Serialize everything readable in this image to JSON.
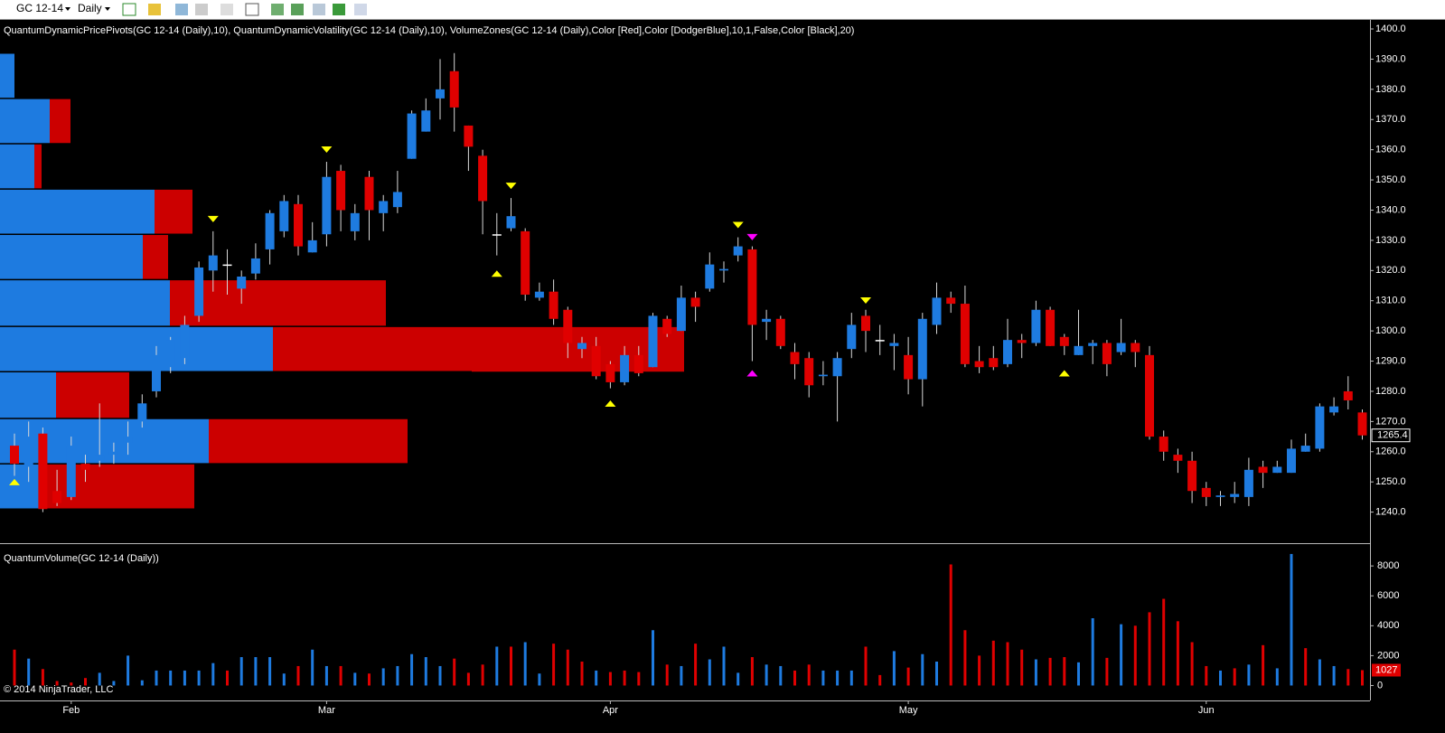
{
  "toolbar": {
    "symbol": "GC 12-14",
    "interval": "Daily"
  },
  "copyright": "© 2014 NinjaTrader, LLC",
  "chart_data": [
    {
      "type": "candlestick",
      "title": "QuantumDynamicPricePivots(GC 12-14 (Daily),10), QuantumDynamicVolatility(GC 12-14 (Daily),10), VolumeZones(GC 12-14 (Daily),Color [Red],Color [DodgerBlue],10,1,False,Color [Black],20)",
      "categories": [
        null,
        null,
        null,
        null,
        "Feb",
        null,
        null,
        null,
        null,
        null,
        null,
        null,
        null,
        null,
        null,
        null,
        null,
        null,
        null,
        null,
        null,
        null,
        "Mar",
        null,
        null,
        null,
        null,
        null,
        null,
        null,
        null,
        null,
        null,
        null,
        null,
        null,
        null,
        null,
        null,
        null,
        null,
        null,
        "Apr",
        null,
        null,
        null,
        null,
        null,
        null,
        null,
        null,
        null,
        null,
        null,
        null,
        null,
        null,
        null,
        null,
        null,
        null,
        null,
        null,
        "May",
        null,
        null,
        null,
        null,
        null,
        null,
        null,
        null,
        null,
        null,
        null,
        null,
        null,
        null,
        null,
        null,
        null,
        null,
        null,
        null,
        "Jun",
        null,
        null,
        null,
        null,
        null,
        null,
        null,
        null,
        null,
        null,
        null
      ],
      "open": [
        1262,
        1255,
        1266,
        1247,
        1245,
        1256,
        1257,
        1259,
        1263,
        1270,
        1280,
        1288,
        1291,
        1305,
        1320,
        1322,
        1314,
        1319,
        1327,
        1333,
        1342,
        1326,
        1332,
        1353,
        1333,
        1351,
        1339,
        1341,
        1357,
        1366,
        1377,
        1386,
        1368,
        1358,
        1332,
        1334,
        1333,
        1311,
        1313,
        1307,
        1294,
        1295,
        1289,
        1283,
        1292,
        1288,
        1304,
        1300,
        1311,
        1314,
        1320,
        1325,
        1327,
        1303,
        1304,
        1293,
        1291,
        1285,
        1285,
        1294,
        1305,
        1297,
        1295,
        1292,
        1284,
        1302,
        1311,
        1309,
        1290,
        1291,
        1289,
        1297,
        1296,
        1307,
        1298,
        1292,
        1295,
        1296,
        1293,
        1296,
        1292,
        1265,
        1259,
        1257,
        1248,
        1245,
        1245,
        1245,
        1255,
        1253,
        1253,
        1260,
        1261,
        1273,
        1280,
        1273
      ],
      "high": [
        1266,
        1270,
        1268,
        1254,
        1265,
        1259,
        1276,
        1263,
        1270,
        1279,
        1295,
        1298,
        1305,
        1323,
        1333,
        1327,
        1320,
        1329,
        1340,
        1345,
        1345,
        1336,
        1356,
        1355,
        1342,
        1353,
        1345,
        1353,
        1373,
        1377,
        1390,
        1392,
        1368,
        1360,
        1339,
        1344,
        1334,
        1316,
        1317,
        1308,
        1298,
        1298,
        1290,
        1295,
        1295,
        1306,
        1305,
        1315,
        1313,
        1326,
        1323,
        1331,
        1328,
        1307,
        1305,
        1296,
        1293,
        1290,
        1293,
        1306,
        1307,
        1302,
        1299,
        1298,
        1306,
        1316,
        1313,
        1315,
        1295,
        1295,
        1304,
        1299,
        1310,
        1308,
        1299,
        1307,
        1297,
        1297,
        1304,
        1297,
        1295,
        1267,
        1261,
        1260,
        1250,
        1247,
        1250,
        1258,
        1257,
        1257,
        1264,
        1266,
        1276,
        1278,
        1285,
        1274
      ],
      "low": [
        1252,
        1250,
        1240,
        1242,
        1244,
        1250,
        1255,
        1256,
        1259,
        1268,
        1278,
        1286,
        1289,
        1303,
        1313,
        1312,
        1309,
        1317,
        1322,
        1331,
        1325,
        1326,
        1328,
        1333,
        1330,
        1330,
        1333,
        1339,
        1357,
        1366,
        1370,
        1366,
        1353,
        1332,
        1325,
        1333,
        1310,
        1310,
        1302,
        1291,
        1291,
        1284,
        1281,
        1282,
        1285,
        1288,
        1298,
        1300,
        1303,
        1313,
        1316,
        1323,
        1290,
        1297,
        1294,
        1284,
        1278,
        1282,
        1270,
        1291,
        1293,
        1292,
        1287,
        1279,
        1275,
        1299,
        1306,
        1288,
        1286,
        1287,
        1288,
        1291,
        1295,
        1295,
        1292,
        1292,
        1289,
        1285,
        1292,
        1288,
        1264,
        1257,
        1253,
        1243,
        1242,
        1242,
        1243,
        1242,
        1248,
        1253,
        1253,
        1260,
        1260,
        1272,
        1274,
        1264
      ],
      "close": [
        1256,
        1265,
        1241,
        1243,
        1262,
        1254,
        1259,
        1260,
        1265,
        1276,
        1292,
        1297,
        1302,
        1321,
        1325,
        1322,
        1318,
        1324,
        1339,
        1343,
        1328,
        1330,
        1351,
        1340,
        1339,
        1340,
        1343,
        1346,
        1372,
        1373,
        1380,
        1374,
        1361,
        1343,
        1332,
        1338,
        1312,
        1313,
        1304,
        1296,
        1296,
        1285,
        1283,
        1292,
        1286,
        1305,
        1299,
        1311,
        1308,
        1322,
        1320.5,
        1328,
        1302,
        1304,
        1295,
        1289,
        1282,
        1285.5,
        1291,
        1302,
        1300,
        1297,
        1296,
        1284,
        1304,
        1311,
        1309,
        1289,
        1288,
        1288,
        1297,
        1296,
        1307,
        1295,
        1295,
        1295,
        1296,
        1289,
        1296,
        1293,
        1265,
        1260,
        1257,
        1247,
        1245,
        1245.5,
        1246,
        1254,
        1253,
        1255,
        1261,
        1262,
        1275,
        1275,
        1277,
        1265.4
      ],
      "up_color": "#1e7be0",
      "down_color": "#e00000",
      "flat_color": "#ffffff",
      "ylim": [
        1230,
        1403
      ],
      "yticks": [
        {
          "value": 1240,
          "label": "1240.0"
        },
        {
          "value": 1250,
          "label": "1250.0"
        },
        {
          "value": 1260,
          "label": "1260.0"
        },
        {
          "value": 1270,
          "label": "1270.0"
        },
        {
          "value": 1280,
          "label": "1280.0"
        },
        {
          "value": 1290,
          "label": "1290.0"
        },
        {
          "value": 1300,
          "label": "1300.0"
        },
        {
          "value": 1310,
          "label": "1310.0"
        },
        {
          "value": 1320,
          "label": "1320.0"
        },
        {
          "value": 1330,
          "label": "1330.0"
        },
        {
          "value": 1340,
          "label": "1340.0"
        },
        {
          "value": 1350,
          "label": "1350.0"
        },
        {
          "value": 1360,
          "label": "1360.0"
        },
        {
          "value": 1370,
          "label": "1370.0"
        },
        {
          "value": 1380,
          "label": "1380.0"
        },
        {
          "value": 1390,
          "label": "1390.0"
        },
        {
          "value": 1400,
          "label": "1400.0"
        }
      ],
      "volume_zones": {
        "zone_edges": [
          1392,
          1377,
          1362,
          1347,
          1332,
          1317,
          1301.5,
          1286.5,
          1271,
          1256,
          1241
        ],
        "zone_xlim": [
          0,
          1516
        ],
        "blue": [
          16,
          55,
          38,
          171,
          158,
          188,
          302,
          62,
          231,
          49
        ],
        "red": [
          0,
          23,
          8,
          42,
          28,
          239,
          455,
          81,
          220,
          166
        ],
        "blue_color": "#1e7be0",
        "red_color": "#cc0000"
      },
      "pivots": [
        {
          "index": 0,
          "price": 1251,
          "direction": "up",
          "color": "#ffff00"
        },
        {
          "index": 14,
          "price": 1336,
          "direction": "down",
          "color": "#ffff00"
        },
        {
          "index": 22,
          "price": 1359,
          "direction": "down",
          "color": "#ffff00"
        },
        {
          "index": 34,
          "price": 1320,
          "direction": "up",
          "color": "#ffff00"
        },
        {
          "index": 35,
          "price": 1347,
          "direction": "down",
          "color": "#ffff00"
        },
        {
          "index": 42,
          "price": 1277,
          "direction": "up",
          "color": "#ffff00"
        },
        {
          "index": 51,
          "price": 1334,
          "direction": "down",
          "color": "#ffff00"
        },
        {
          "index": 52,
          "price": 1330,
          "direction": "down",
          "color": "#ff00ff"
        },
        {
          "index": 52,
          "price": 1287,
          "direction": "up",
          "color": "#ff00ff"
        },
        {
          "index": 60,
          "price": 1309,
          "direction": "down",
          "color": "#ffff00"
        },
        {
          "index": 74,
          "price": 1287,
          "direction": "up",
          "color": "#ffff00"
        }
      ]
    },
    {
      "type": "bar",
      "title": "QuantumVolume(GC 12-14 (Daily))",
      "values": [
        2400,
        1800,
        1100,
        300,
        200,
        500,
        850,
        300,
        2000,
        350,
        1000,
        1000,
        1000,
        1000,
        1500,
        1000,
        1900,
        1900,
        1900,
        800,
        1300,
        2400,
        1300,
        1300,
        850,
        800,
        1150,
        1300,
        2100,
        1900,
        1300,
        1800,
        850,
        1400,
        2600,
        2600,
        2900,
        800,
        2800,
        2400,
        1600,
        1000,
        900,
        1000,
        900,
        3700,
        1400,
        1300,
        2800,
        1750,
        2600,
        850,
        1900,
        1400,
        1300,
        1000,
        1400,
        1000,
        1000,
        1000,
        2600,
        700,
        2300,
        1200,
        2100,
        1600,
        8100,
        3700,
        2000,
        3000,
        2900,
        2400,
        1750,
        1850,
        1900,
        1550,
        4500,
        1850,
        4100,
        4000,
        4900,
        5800,
        4300,
        2900,
        1300,
        1000,
        1150,
        1400,
        2700,
        1150,
        8800,
        2500,
        1750,
        1300,
        1100,
        1027
      ],
      "colors": [
        "#e00000",
        "#1e7be0",
        "#e00000",
        "#e00000",
        "#e00000",
        "#e00000",
        "#1e7be0",
        "#1e7be0",
        "#1e7be0",
        "#1e7be0",
        "#1e7be0",
        "#1e7be0",
        "#1e7be0",
        "#1e7be0",
        "#1e7be0",
        "#e00000",
        "#1e7be0",
        "#1e7be0",
        "#1e7be0",
        "#1e7be0",
        "#e00000",
        "#1e7be0",
        "#1e7be0",
        "#e00000",
        "#1e7be0",
        "#e00000",
        "#1e7be0",
        "#1e7be0",
        "#1e7be0",
        "#1e7be0",
        "#1e7be0",
        "#e00000",
        "#e00000",
        "#e00000",
        "#1e7be0",
        "#e00000",
        "#1e7be0",
        "#1e7be0",
        "#e00000",
        "#e00000",
        "#e00000",
        "#1e7be0",
        "#e00000",
        "#e00000",
        "#e00000",
        "#1e7be0",
        "#e00000",
        "#1e7be0",
        "#e00000",
        "#1e7be0",
        "#1e7be0",
        "#1e7be0",
        "#e00000",
        "#1e7be0",
        "#1e7be0",
        "#e00000",
        "#e00000",
        "#1e7be0",
        "#1e7be0",
        "#1e7be0",
        "#e00000",
        "#e00000",
        "#1e7be0",
        "#e00000",
        "#1e7be0",
        "#1e7be0",
        "#e00000",
        "#e00000",
        "#e00000",
        "#e00000",
        "#e00000",
        "#e00000",
        "#1e7be0",
        "#e00000",
        "#e00000",
        "#1e7be0",
        "#1e7be0",
        "#e00000",
        "#1e7be0",
        "#e00000",
        "#e00000",
        "#e00000",
        "#e00000",
        "#e00000",
        "#e00000",
        "#1e7be0",
        "#e00000",
        "#1e7be0",
        "#e00000",
        "#1e7be0",
        "#1e7be0",
        "#e00000",
        "#1e7be0",
        "#1e7be0",
        "#e00000",
        "#e00000"
      ],
      "ylim": [
        -1000,
        9400
      ],
      "yticks": [
        0,
        2000,
        4000,
        6000,
        8000
      ]
    }
  ]
}
